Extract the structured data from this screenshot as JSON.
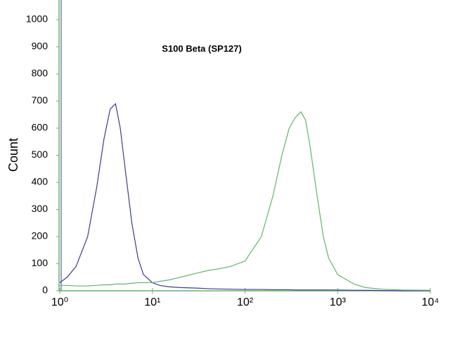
{
  "chart_data": {
    "type": "line",
    "title": "S100 Beta (SP127)",
    "y_label": "Count",
    "xlog": true,
    "xlim": [
      1,
      10000
    ],
    "ylim": [
      0,
      1000
    ],
    "xticks": [
      {
        "value": 1,
        "label": "10⁰"
      },
      {
        "value": 10,
        "label": "10¹"
      },
      {
        "value": 100,
        "label": "10²"
      },
      {
        "value": 1000,
        "label": "10³"
      },
      {
        "value": 10000,
        "label": "10⁴"
      }
    ],
    "yticks": [
      0,
      100,
      200,
      300,
      400,
      500,
      600,
      700,
      800,
      900,
      1000
    ],
    "x": [
      1,
      1.2,
      1.5,
      2,
      2.5,
      3,
      3.5,
      4,
      4.5,
      5,
      6,
      7,
      8,
      10,
      12,
      15,
      20,
      30,
      40,
      50,
      70,
      100,
      150,
      200,
      250,
      300,
      350,
      400,
      450,
      500,
      600,
      700,
      800,
      1000,
      1500,
      2000,
      3000,
      5000,
      10000
    ],
    "series": [
      {
        "color": "#3b3b9c",
        "values": [
          30,
          50,
          90,
          200,
          380,
          560,
          670,
          690,
          600,
          470,
          250,
          120,
          60,
          30,
          20,
          15,
          12,
          10,
          8,
          7,
          6,
          5,
          5,
          4,
          4,
          4,
          3,
          3,
          3,
          3,
          3,
          3,
          3,
          3,
          2,
          2,
          1,
          0,
          0
        ]
      },
      {
        "color": "#62b56c",
        "values": [
          20,
          20,
          18,
          18,
          20,
          22,
          22,
          25,
          25,
          25,
          28,
          30,
          30,
          30,
          35,
          40,
          50,
          65,
          75,
          80,
          90,
          110,
          200,
          350,
          500,
          600,
          640,
          660,
          630,
          540,
          350,
          200,
          120,
          60,
          25,
          12,
          6,
          3,
          2
        ]
      }
    ]
  }
}
